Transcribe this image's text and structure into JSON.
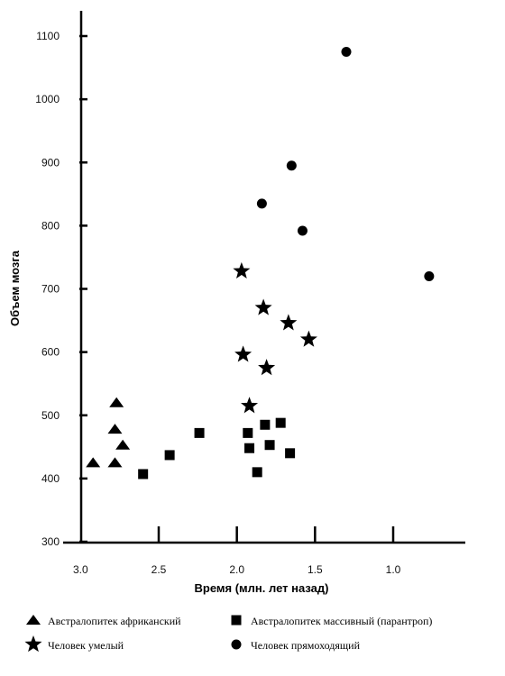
{
  "chart_data": {
    "type": "scatter",
    "xlabel": "Время (млн. лет назад)",
    "ylabel": "Объем мозга",
    "xlim": [
      3.1,
      0.55
    ],
    "ylim": [
      300,
      1150
    ],
    "x_reversed": true,
    "x_ticks": [
      3.0,
      2.5,
      2.0,
      1.5,
      1.0
    ],
    "x_tick_labels": [
      "3.0",
      "2.5",
      "2.0",
      "1.5",
      "1.0"
    ],
    "y_ticks": [
      300,
      400,
      500,
      600,
      700,
      800,
      900,
      1000,
      1100
    ],
    "y_tick_labels": [
      "300",
      "400",
      "500",
      "600",
      "700",
      "800",
      "900",
      "1000",
      "1100"
    ],
    "grid": false,
    "legend_position": "bottom",
    "series": [
      {
        "name": "Австралопитек африканский",
        "marker": "triangle",
        "points": [
          {
            "x": 2.92,
            "y": 425
          },
          {
            "x": 2.78,
            "y": 425
          },
          {
            "x": 2.73,
            "y": 453
          },
          {
            "x": 2.78,
            "y": 478
          },
          {
            "x": 2.77,
            "y": 520
          }
        ]
      },
      {
        "name": "Австралопитек массивный (парантроп)",
        "marker": "square",
        "points": [
          {
            "x": 2.6,
            "y": 407
          },
          {
            "x": 2.43,
            "y": 437
          },
          {
            "x": 2.24,
            "y": 472
          },
          {
            "x": 1.93,
            "y": 472
          },
          {
            "x": 1.92,
            "y": 448
          },
          {
            "x": 1.87,
            "y": 410
          },
          {
            "x": 1.82,
            "y": 485
          },
          {
            "x": 1.79,
            "y": 453
          },
          {
            "x": 1.72,
            "y": 488
          },
          {
            "x": 1.66,
            "y": 440
          }
        ]
      },
      {
        "name": "Человек умелый",
        "marker": "star",
        "points": [
          {
            "x": 1.97,
            "y": 728
          },
          {
            "x": 1.83,
            "y": 670
          },
          {
            "x": 1.67,
            "y": 646
          },
          {
            "x": 1.54,
            "y": 620
          },
          {
            "x": 1.96,
            "y": 596
          },
          {
            "x": 1.81,
            "y": 575
          },
          {
            "x": 1.92,
            "y": 515
          }
        ]
      },
      {
        "name": "Человек прямоходящий",
        "marker": "circle",
        "points": [
          {
            "x": 1.3,
            "y": 1075
          },
          {
            "x": 1.65,
            "y": 895
          },
          {
            "x": 1.84,
            "y": 835
          },
          {
            "x": 1.58,
            "y": 792
          },
          {
            "x": 0.77,
            "y": 720
          }
        ]
      }
    ]
  }
}
